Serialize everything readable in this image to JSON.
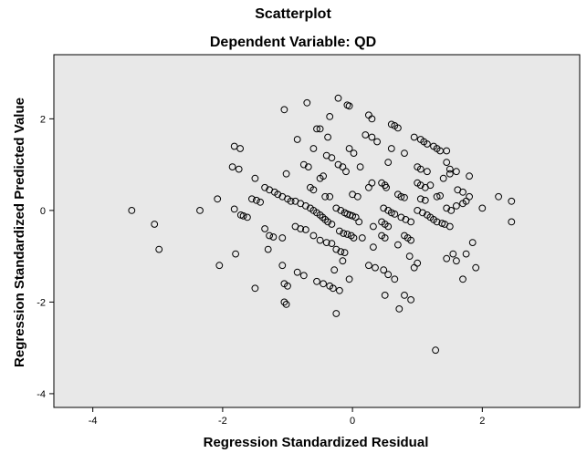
{
  "chart_data": {
    "type": "scatter",
    "title": "Scatterplot",
    "subtitle": "Dependent Variable: QD",
    "xlabel": "Regression Standardized Residual",
    "ylabel": "Regression Standardized Predicted Value",
    "xlim": [
      -4.6,
      3.5
    ],
    "ylim": [
      -4.3,
      3.4
    ],
    "xticks": [
      -4,
      -2,
      0,
      2
    ],
    "yticks": [
      -4,
      -2,
      0,
      2
    ],
    "grid": false,
    "plot_background": "#e8e8e8",
    "marker": "open-circle",
    "points": [
      [
        -3.4,
        0.0
      ],
      [
        -3.05,
        -0.3
      ],
      [
        -2.98,
        -0.85
      ],
      [
        -2.35,
        0.0
      ],
      [
        -2.08,
        0.25
      ],
      [
        -2.05,
        -1.2
      ],
      [
        -1.8,
        -0.95
      ],
      [
        -1.82,
        0.03
      ],
      [
        -1.85,
        0.95
      ],
      [
        -1.75,
        0.9
      ],
      [
        -1.82,
        1.4
      ],
      [
        -1.73,
        1.35
      ],
      [
        -1.72,
        -0.1
      ],
      [
        -1.68,
        -0.12
      ],
      [
        -1.62,
        -0.15
      ],
      [
        -1.55,
        0.25
      ],
      [
        -1.48,
        0.22
      ],
      [
        -1.42,
        0.18
      ],
      [
        -1.5,
        0.7
      ],
      [
        -1.5,
        -1.7
      ],
      [
        -1.35,
        0.5
      ],
      [
        -1.28,
        0.45
      ],
      [
        -1.2,
        0.4
      ],
      [
        -1.15,
        0.35
      ],
      [
        -1.08,
        0.3
      ],
      [
        -1.0,
        0.25
      ],
      [
        -0.95,
        0.2
      ],
      [
        -1.35,
        -0.4
      ],
      [
        -1.28,
        -0.55
      ],
      [
        -1.22,
        -0.58
      ],
      [
        -1.08,
        -0.6
      ],
      [
        -1.3,
        -0.85
      ],
      [
        -1.08,
        -1.2
      ],
      [
        -1.05,
        -1.6
      ],
      [
        -1.0,
        -1.65
      ],
      [
        -1.05,
        -2.0
      ],
      [
        -1.02,
        -2.05
      ],
      [
        -1.05,
        2.2
      ],
      [
        -1.02,
        0.8
      ],
      [
        -0.88,
        0.2
      ],
      [
        -0.8,
        0.15
      ],
      [
        -0.72,
        0.1
      ],
      [
        -0.65,
        0.05
      ],
      [
        -0.6,
        0.0
      ],
      [
        -0.55,
        -0.05
      ],
      [
        -0.5,
        -0.1
      ],
      [
        -0.46,
        -0.15
      ],
      [
        -0.42,
        -0.2
      ],
      [
        -0.38,
        -0.25
      ],
      [
        -0.32,
        -0.3
      ],
      [
        -0.88,
        -0.35
      ],
      [
        -0.8,
        -0.4
      ],
      [
        -0.72,
        -0.42
      ],
      [
        -0.85,
        1.55
      ],
      [
        -0.7,
        2.35
      ],
      [
        -0.6,
        1.35
      ],
      [
        -0.55,
        1.78
      ],
      [
        -0.5,
        1.78
      ],
      [
        -0.75,
        1.0
      ],
      [
        -0.68,
        0.95
      ],
      [
        -0.65,
        0.5
      ],
      [
        -0.6,
        0.45
      ],
      [
        -0.5,
        0.7
      ],
      [
        -0.45,
        0.75
      ],
      [
        -0.35,
        0.3
      ],
      [
        -0.42,
        0.3
      ],
      [
        -0.6,
        -0.55
      ],
      [
        -0.5,
        -0.65
      ],
      [
        -0.4,
        -0.7
      ],
      [
        -0.32,
        -0.72
      ],
      [
        -0.85,
        -1.35
      ],
      [
        -0.75,
        -1.42
      ],
      [
        -0.55,
        -1.55
      ],
      [
        -0.45,
        -1.6
      ],
      [
        -0.35,
        -1.65
      ],
      [
        -0.3,
        -1.7
      ],
      [
        -0.2,
        -1.75
      ],
      [
        -0.28,
        -1.3
      ],
      [
        -0.25,
        -2.25
      ],
      [
        -0.4,
        1.2
      ],
      [
        -0.32,
        1.15
      ],
      [
        -0.35,
        2.05
      ],
      [
        -0.38,
        1.6
      ],
      [
        -0.22,
        2.45
      ],
      [
        -0.22,
        1.0
      ],
      [
        -0.15,
        0.95
      ],
      [
        -0.1,
        0.85
      ],
      [
        -0.25,
        -0.85
      ],
      [
        -0.18,
        -0.9
      ],
      [
        -0.12,
        -0.92
      ],
      [
        -0.25,
        0.05
      ],
      [
        -0.18,
        0.0
      ],
      [
        -0.12,
        -0.05
      ],
      [
        -0.08,
        -0.08
      ],
      [
        -0.04,
        -0.1
      ],
      [
        0.0,
        -0.12
      ],
      [
        0.05,
        -0.15
      ],
      [
        -0.2,
        -0.45
      ],
      [
        -0.14,
        -0.5
      ],
      [
        -0.08,
        -0.52
      ],
      [
        -0.02,
        -0.55
      ],
      [
        0.02,
        -0.6
      ],
      [
        -0.15,
        -1.1
      ],
      [
        -0.05,
        -1.5
      ],
      [
        -0.08,
        2.3
      ],
      [
        -0.05,
        2.28
      ],
      [
        -0.05,
        1.35
      ],
      [
        0.02,
        1.25
      ],
      [
        0.0,
        0.35
      ],
      [
        0.08,
        0.3
      ],
      [
        0.1,
        -0.25
      ],
      [
        0.15,
        -0.6
      ],
      [
        0.12,
        0.95
      ],
      [
        0.2,
        1.65
      ],
      [
        0.25,
        2.08
      ],
      [
        0.3,
        2.0
      ],
      [
        0.3,
        1.6
      ],
      [
        0.38,
        1.5
      ],
      [
        0.25,
        0.5
      ],
      [
        0.3,
        0.6
      ],
      [
        0.32,
        -0.35
      ],
      [
        0.32,
        -0.8
      ],
      [
        0.25,
        -1.2
      ],
      [
        0.35,
        -1.25
      ],
      [
        0.48,
        -1.3
      ],
      [
        0.55,
        -1.4
      ],
      [
        0.65,
        -1.5
      ],
      [
        0.5,
        -1.85
      ],
      [
        0.45,
        0.6
      ],
      [
        0.5,
        0.55
      ],
      [
        0.52,
        0.5
      ],
      [
        0.48,
        0.05
      ],
      [
        0.55,
        0.0
      ],
      [
        0.6,
        -0.05
      ],
      [
        0.65,
        -0.08
      ],
      [
        0.45,
        -0.25
      ],
      [
        0.5,
        -0.3
      ],
      [
        0.55,
        -0.35
      ],
      [
        0.45,
        -0.55
      ],
      [
        0.5,
        -0.6
      ],
      [
        0.55,
        1.05
      ],
      [
        0.6,
        1.35
      ],
      [
        0.6,
        1.88
      ],
      [
        0.65,
        1.85
      ],
      [
        0.7,
        1.8
      ],
      [
        0.8,
        1.25
      ],
      [
        0.7,
        0.35
      ],
      [
        0.75,
        0.3
      ],
      [
        0.8,
        0.28
      ],
      [
        0.75,
        -0.15
      ],
      [
        0.82,
        -0.2
      ],
      [
        0.9,
        -0.25
      ],
      [
        0.8,
        -0.55
      ],
      [
        0.85,
        -0.6
      ],
      [
        0.9,
        -0.65
      ],
      [
        0.7,
        -0.75
      ],
      [
        0.88,
        -1.0
      ],
      [
        1.0,
        -1.15
      ],
      [
        0.95,
        -1.25
      ],
      [
        0.8,
        -1.85
      ],
      [
        0.9,
        -1.95
      ],
      [
        0.72,
        -2.15
      ],
      [
        0.95,
        1.6
      ],
      [
        1.05,
        1.55
      ],
      [
        1.1,
        1.5
      ],
      [
        1.15,
        1.45
      ],
      [
        1.25,
        1.4
      ],
      [
        1.3,
        1.35
      ],
      [
        1.35,
        1.3
      ],
      [
        1.45,
        1.3
      ],
      [
        1.0,
        0.95
      ],
      [
        1.05,
        0.9
      ],
      [
        1.15,
        0.85
      ],
      [
        1.0,
        0.6
      ],
      [
        1.05,
        0.55
      ],
      [
        1.12,
        0.5
      ],
      [
        1.05,
        0.25
      ],
      [
        1.12,
        0.22
      ],
      [
        1.0,
        0.0
      ],
      [
        1.08,
        -0.05
      ],
      [
        1.15,
        -0.1
      ],
      [
        1.2,
        -0.15
      ],
      [
        1.25,
        -0.2
      ],
      [
        1.3,
        -0.25
      ],
      [
        1.38,
        -0.28
      ],
      [
        1.42,
        -0.3
      ],
      [
        1.5,
        -0.35
      ],
      [
        1.2,
        0.55
      ],
      [
        1.3,
        0.3
      ],
      [
        1.35,
        0.32
      ],
      [
        1.4,
        0.7
      ],
      [
        1.5,
        0.8
      ],
      [
        1.45,
        0.05
      ],
      [
        1.52,
        0.0
      ],
      [
        1.6,
        0.1
      ],
      [
        1.7,
        0.15
      ],
      [
        1.75,
        0.2
      ],
      [
        1.5,
        0.9
      ],
      [
        1.55,
        -0.95
      ],
      [
        1.45,
        -1.05
      ],
      [
        1.6,
        -1.1
      ],
      [
        1.7,
        -1.5
      ],
      [
        1.45,
        1.05
      ],
      [
        1.6,
        0.85
      ],
      [
        1.62,
        0.45
      ],
      [
        1.7,
        0.4
      ],
      [
        1.8,
        0.3
      ],
      [
        1.8,
        0.75
      ],
      [
        1.85,
        -0.7
      ],
      [
        1.75,
        -0.95
      ],
      [
        1.9,
        -1.25
      ],
      [
        1.28,
        -3.05
      ],
      [
        2.0,
        0.05
      ],
      [
        2.25,
        0.3
      ],
      [
        2.45,
        0.2
      ],
      [
        2.45,
        -0.25
      ]
    ]
  }
}
